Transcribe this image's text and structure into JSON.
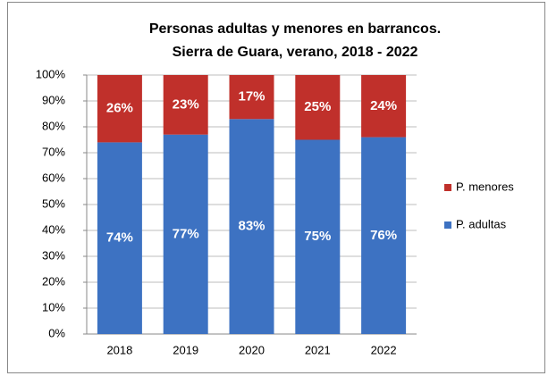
{
  "chart_data": {
    "type": "stacked_bar",
    "title": [
      "Personas adultas y menores en barrancos.",
      "Sierra de Guara, verano, 2018 - 2022"
    ],
    "categories": [
      "2018",
      "2019",
      "2020",
      "2021",
      "2022"
    ],
    "series": [
      {
        "name": "P. adultas",
        "color": "#3d72c2",
        "values": [
          74,
          77,
          83,
          75,
          76
        ],
        "value_labels": [
          "74%",
          "77%",
          "83%",
          "75%",
          "76%"
        ]
      },
      {
        "name": "P. menores",
        "color": "#c0302b",
        "values": [
          26,
          23,
          17,
          25,
          24
        ],
        "value_labels": [
          "26%",
          "23%",
          "17%",
          "25%",
          "24%"
        ]
      }
    ],
    "ylim": [
      0,
      100
    ],
    "yticks": [
      {
        "value": 0,
        "label": "0%"
      },
      {
        "value": 10,
        "label": "10%"
      },
      {
        "value": 20,
        "label": "20%"
      },
      {
        "value": 30,
        "label": "30%"
      },
      {
        "value": 40,
        "label": "40%"
      },
      {
        "value": 50,
        "label": "50%"
      },
      {
        "value": 60,
        "label": "60%"
      },
      {
        "value": 70,
        "label": "70%"
      },
      {
        "value": 80,
        "label": "80%"
      },
      {
        "value": 90,
        "label": "90%"
      },
      {
        "value": 100,
        "label": "100%"
      }
    ],
    "grid": true,
    "legend": "right"
  }
}
